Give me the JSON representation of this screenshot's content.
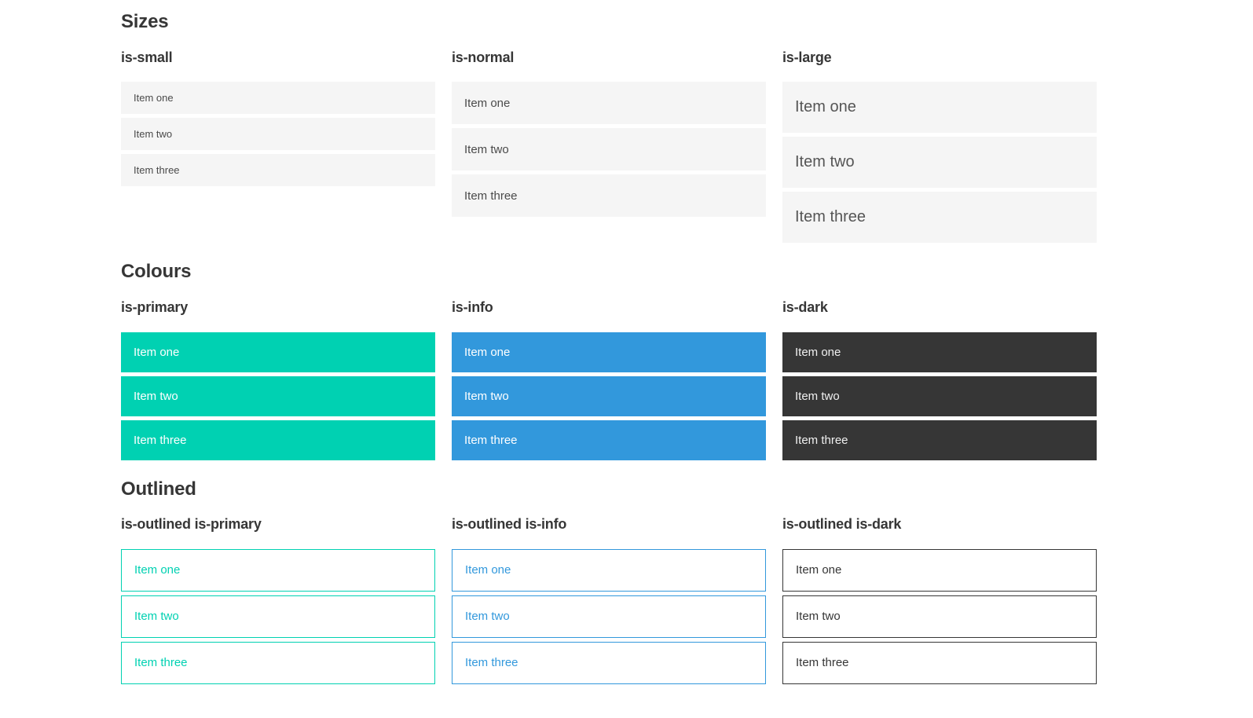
{
  "page": {
    "background": "#ffffff"
  },
  "colors": {
    "primary": "#00d1b2",
    "info": "#3298dc",
    "dark": "#363636",
    "item_background": "#f5f5f5",
    "item_text": "#4a4a4a",
    "heading_text": "#363636",
    "white": "#ffffff"
  },
  "sections": [
    {
      "title": "Sizes",
      "groups": [
        {
          "label": "is-small",
          "size": "small",
          "item_style": {
            "bg": "#f5f5f5",
            "text": "#4a4a4a"
          },
          "items": [
            "Item one",
            "Item two",
            "Item three"
          ]
        },
        {
          "label": "is-normal",
          "size": "normal",
          "item_style": {
            "bg": "#f5f5f5",
            "text": "#4a4a4a"
          },
          "items": [
            "Item one",
            "Item two",
            "Item three"
          ]
        },
        {
          "label": "is-large",
          "size": "large",
          "item_style": {
            "bg": "#f5f5f5",
            "text": "#555555"
          },
          "items": [
            "Item one",
            "Item two",
            "Item three"
          ]
        }
      ]
    },
    {
      "title": "Colours",
      "groups": [
        {
          "label": "is-primary",
          "size": "colored",
          "item_style": {
            "bg": "#00d1b2",
            "text": "#ffffff"
          },
          "items": [
            "Item one",
            "Item two",
            "Item three"
          ]
        },
        {
          "label": "is-info",
          "size": "colored",
          "item_style": {
            "bg": "#3298dc",
            "text": "#ffffff"
          },
          "items": [
            "Item one",
            "Item two",
            "Item three"
          ]
        },
        {
          "label": "is-dark",
          "size": "colored",
          "item_style": {
            "bg": "#363636",
            "text": "#f0f0f0"
          },
          "items": [
            "Item one",
            "Item two",
            "Item three"
          ]
        }
      ]
    },
    {
      "title": "Outlined",
      "groups": [
        {
          "label": "is-outlined is-primary",
          "size": "outlined",
          "item_style": {
            "bg": "#ffffff",
            "text": "#00d1b2",
            "border": "#00d1b2"
          },
          "items": [
            "Item one",
            "Item two",
            "Item three"
          ]
        },
        {
          "label": "is-outlined is-info",
          "size": "outlined",
          "item_style": {
            "bg": "#ffffff",
            "text": "#3298dc",
            "border": "#3298dc"
          },
          "items": [
            "Item one",
            "Item two",
            "Item three"
          ]
        },
        {
          "label": "is-outlined is-dark",
          "size": "outlined",
          "item_style": {
            "bg": "#ffffff",
            "text": "#363636",
            "border": "#363636"
          },
          "items": [
            "Item one",
            "Item two",
            "Item three"
          ]
        }
      ]
    }
  ]
}
